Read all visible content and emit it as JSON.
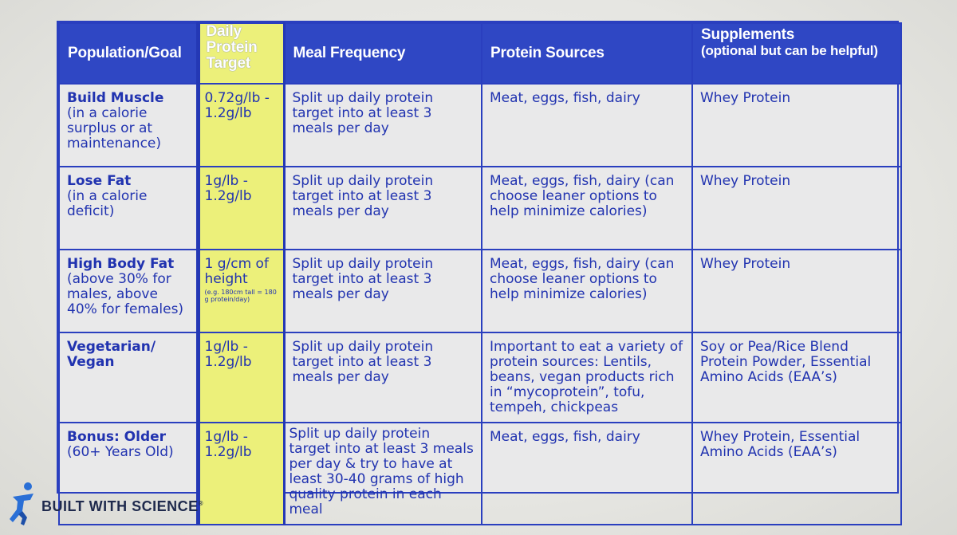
{
  "colors": {
    "header_bg": "#2f47c4",
    "border": "#2a3fbf",
    "text": "#2133b0",
    "highlight": "#ecf07a"
  },
  "headers": {
    "population": "Population/Goal",
    "target_line1": "Daily",
    "target_line2": "Protein",
    "target_line3": "Target",
    "frequency": "Meal Frequency",
    "sources": "Protein Sources",
    "supplements": "Supplements",
    "supplements_note": "(optional but can be helpful)"
  },
  "rows": [
    {
      "name": "Build Muscle",
      "desc": "(in a calorie surplus or at maintenance)",
      "target": "0.72g/lb - 1.2g/lb",
      "target_note": "",
      "frequency": "Split up daily protein target into at least 3 meals per day",
      "sources": "Meat, eggs, fish, dairy",
      "supplements": "Whey Protein"
    },
    {
      "name": "Lose Fat",
      "desc": "(in a calorie deficit)",
      "target": "1g/lb - 1.2g/lb",
      "target_note": "",
      "frequency": "Split up daily protein target into at least 3 meals per day",
      "sources": "Meat, eggs, fish, dairy (can choose leaner options to help minimize calories)",
      "supplements": "Whey Protein"
    },
    {
      "name": "High Body Fat",
      "desc": "(above 30% for males, above 40% for females)",
      "target": "1 g/cm of height",
      "target_note": "(e.g. 180cm tall = 180 g protein/day)",
      "frequency": "Split up daily protein target into at least 3 meals per day",
      "sources": "Meat, eggs, fish, dairy (can choose leaner options to help minimize calories)",
      "supplements": "Whey Protein"
    },
    {
      "name": "Vegetarian/ Vegan",
      "desc": "",
      "target": "1g/lb - 1.2g/lb",
      "target_note": "",
      "frequency": "Split up daily protein target into at least 3 meals per day",
      "sources": "Important to eat a variety of protein sources: Lentils, beans, vegan products rich in “mycoprotein”, tofu, tempeh, chickpeas",
      "supplements": "Soy or Pea/Rice Blend Protein Powder, Essential Amino Acids (EAA’s)"
    },
    {
      "name": "Bonus: Older",
      "desc": "(60+ Years Old)",
      "target": "1g/lb - 1.2g/lb",
      "target_note": "",
      "frequency": "Split up daily protein target into at least 3 meals per day & try to have at least 30-40 grams of high quality protein in each meal",
      "sources": "Meat, eggs, fish, dairy",
      "supplements": "Whey Protein, Essential Amino Acids (EAA’s)"
    }
  ],
  "logo": {
    "text": "BUILT WITH SCIENCE",
    "mark": "®",
    "icon": "running-figure-icon"
  }
}
